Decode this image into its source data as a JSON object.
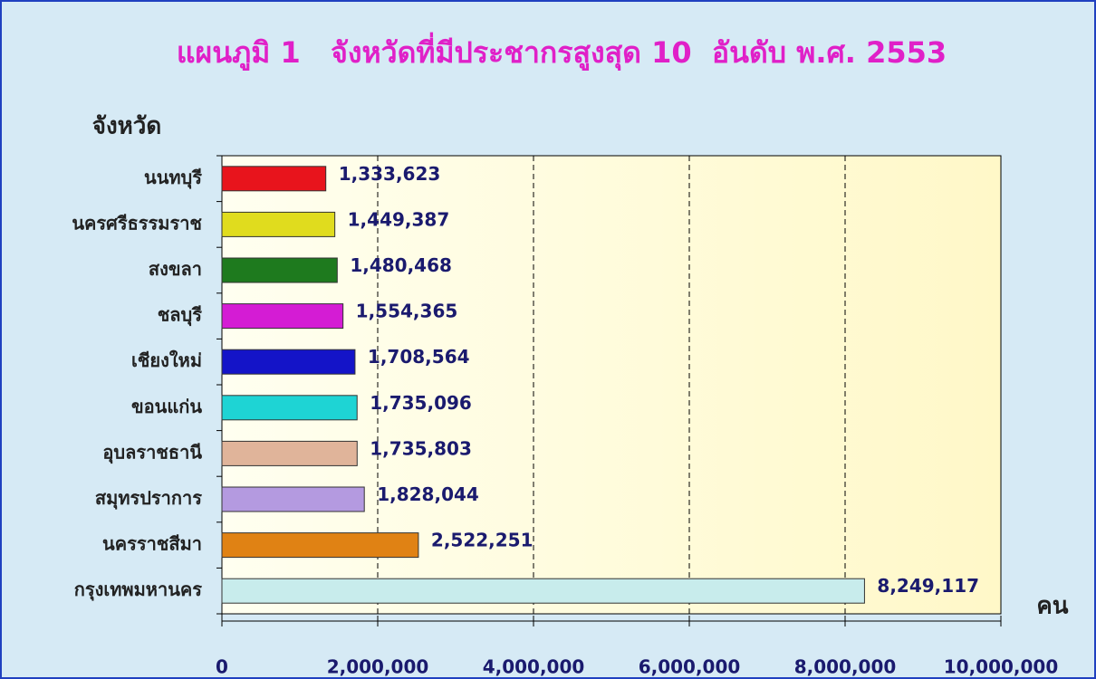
{
  "chart_data": {
    "type": "bar",
    "orientation": "horizontal",
    "title": "แผนภูมิ 1   จังหวัดที่มีประชากรสูงสุด 10  อันดับ พ.ศ. 2553",
    "y_label": "จังหวัด",
    "x_label": "คน",
    "categories": [
      "นนทบุรี",
      "นครศรีธรรมราช",
      "สงขลา",
      "ชลบุรี",
      "เชียงใหม่",
      "ขอนแก่น",
      "อุบลราชธานี",
      "สมุทรปราการ",
      "นครราชสีมา",
      "กรุงเทพมหานคร"
    ],
    "values": [
      1333623,
      1449387,
      1480468,
      1554365,
      1708564,
      1735096,
      1735803,
      1828044,
      2522251,
      8249117
    ],
    "value_labels": [
      "1,333,623",
      "1,449,387",
      "1,480,468",
      "1,554,365",
      "1,708,564",
      "1,735,096",
      "1,735,803",
      "1,828,044",
      "2,522,251",
      "8,249,117"
    ],
    "colors": [
      "#e8141c",
      "#e0dc1e",
      "#1e7a1e",
      "#d41cd4",
      "#1414c8",
      "#1ed4d4",
      "#e0b49a",
      "#b49ae0",
      "#e08214",
      "#c8ecec"
    ],
    "xlim": [
      0,
      10000000
    ],
    "xticks": [
      0,
      {
        "value": 2000000,
        "label": "2,000,000"
      },
      {
        "value": 4000000,
        "label": "4,000,000"
      },
      {
        "value": 6000000,
        "label": "6,000,000"
      },
      {
        "value": 8000000,
        "label": "8,000,000"
      },
      {
        "value": 10000000,
        "label": "10,000,000"
      }
    ],
    "grid": true
  }
}
